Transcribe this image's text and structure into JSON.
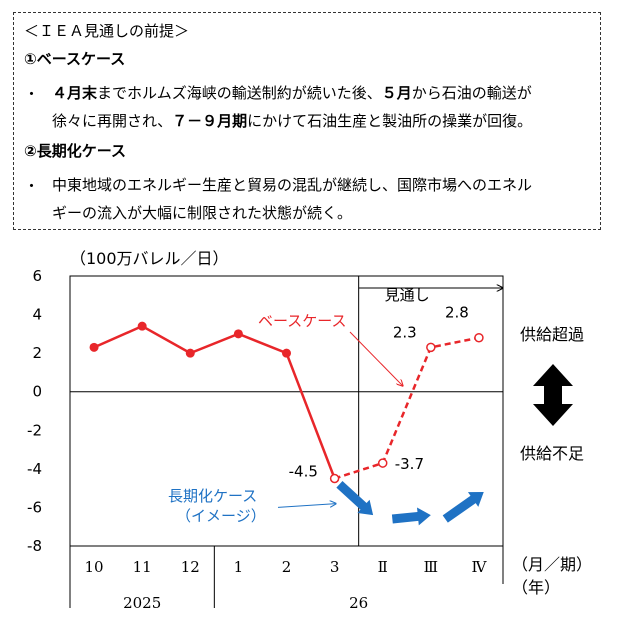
{
  "note": {
    "title": "＜ＩＥＡ見通しの前提＞",
    "base_heading": "①ベースケース",
    "base_bullet": "・",
    "base_text_1_a": "４月末",
    "base_text_1_b": "までホルムズ海峡の輸送制約が続いた後、",
    "base_text_1_c": "５月",
    "base_text_1_d": "から石油の輸送が",
    "base_text_2_a": "徐々に再開され、",
    "base_text_2_b": "７－９月期",
    "base_text_2_c": "にかけて石油生産と製油所の操業が回復。",
    "long_heading": "②長期化ケース",
    "long_bullet": "・",
    "long_text_1": "中東地域のエネルギー生産と貿易の混乱が継続し、国際市場へのエネル",
    "long_text_2": "ギーの流入が大幅に制限された状態が続く。"
  },
  "chart_data": {
    "type": "line",
    "ylabel": "（100万バレル／日）",
    "ylim": [
      -8,
      6
    ],
    "yticks": [
      "6",
      "4",
      "2",
      "0",
      "-2",
      "-4",
      "-6",
      "-8"
    ],
    "categories": [
      "10",
      "11",
      "12",
      "1",
      "2",
      "3",
      "Ⅱ",
      "Ⅲ",
      "Ⅳ"
    ],
    "year_labels": [
      "2025",
      "26"
    ],
    "xlabel_1": "（月／期）",
    "xlabel_2": "（年）",
    "forecast_label": "見通し",
    "series": [
      {
        "name": "ベースケース",
        "color": "#e8262a",
        "values": [
          2.3,
          3.4,
          2.0,
          3.0,
          2.0,
          -4.5,
          -3.7,
          2.3,
          2.8
        ],
        "forecast_from_index": 5
      }
    ],
    "data_labels": {
      "5": "-4.5",
      "6": "-3.7",
      "7": "2.3",
      "8": "2.8"
    },
    "long_case": {
      "name": "長期化ケース",
      "sub": "（イメージ）",
      "color": "#1f72c4",
      "points": [
        [
          5.1,
          -4.8
        ],
        [
          5.8,
          -6.4
        ],
        [
          6.2,
          -6.6
        ],
        [
          7.0,
          -6.4
        ],
        [
          7.3,
          -6.6
        ],
        [
          8.1,
          -5.2
        ]
      ]
    },
    "legend_right_top": "供給超過",
    "legend_right_bottom": "供給不足",
    "grid": false
  }
}
